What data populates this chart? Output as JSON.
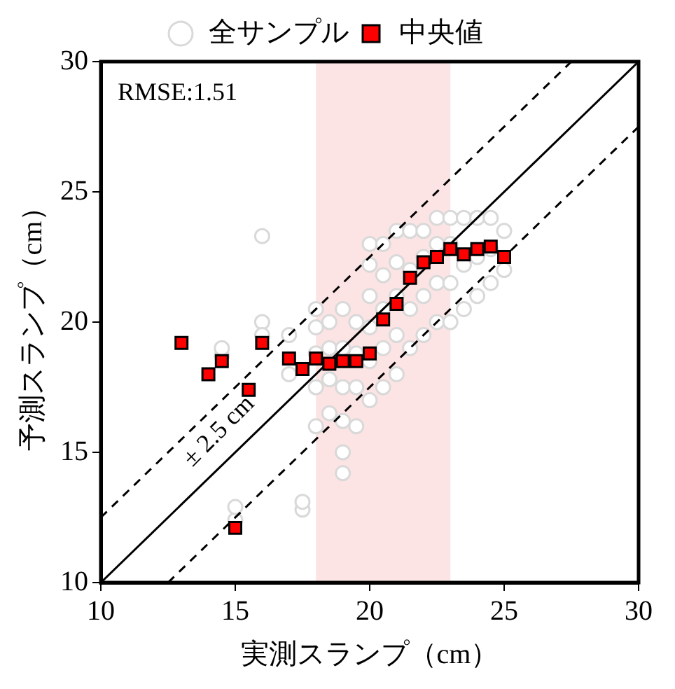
{
  "chart_data": {
    "type": "scatter",
    "xlabel": "実測スランプ（cm）",
    "ylabel": "予測スランプ（cm）",
    "xlim": [
      10,
      30
    ],
    "ylim": [
      10,
      30
    ],
    "xticks": [
      10,
      15,
      20,
      25,
      30
    ],
    "yticks": [
      10,
      15,
      20,
      25,
      30
    ],
    "grid": false,
    "legend": "top",
    "annotations": [
      "RMSE:1.51",
      "± 2.5 cm"
    ],
    "bands": [
      {
        "axis": "x",
        "from": 18,
        "to": 23,
        "color": "#fde4e4"
      }
    ],
    "series": [
      {
        "name": "全サンプル",
        "marker": "circle",
        "color": "#d9d9d9",
        "x": [
          14.5,
          14.5,
          15,
          15,
          16,
          16,
          16,
          17,
          17,
          17.5,
          17.5,
          18,
          18,
          18,
          18,
          18,
          18.5,
          18.5,
          18.5,
          18.5,
          19,
          19,
          19,
          19,
          19,
          19,
          19.5,
          19.5,
          19.5,
          19.5,
          20,
          20,
          20,
          20,
          20,
          20,
          20.5,
          20.5,
          20.5,
          20.5,
          20.5,
          21,
          21,
          21,
          21,
          21,
          21.5,
          21.5,
          21.5,
          21.5,
          22,
          22,
          22,
          22,
          22.5,
          22.5,
          22.5,
          22.5,
          23,
          23,
          23,
          23,
          23.5,
          23.5,
          23.5,
          24,
          24,
          24,
          24.5,
          24.5,
          24.5,
          25,
          25
        ],
        "values": [
          18.7,
          19.0,
          12.4,
          12.9,
          23.3,
          20.0,
          19.5,
          19.5,
          18.0,
          12.8,
          13.1,
          16.0,
          17.5,
          18.8,
          19.8,
          20.5,
          16.5,
          17.8,
          19.0,
          20.0,
          14.2,
          15.0,
          16.2,
          17.5,
          19.0,
          20.5,
          16.0,
          17.5,
          18.8,
          20.0,
          17.0,
          18.5,
          19.8,
          21.0,
          22.2,
          23.0,
          17.5,
          19.0,
          20.5,
          21.8,
          23.0,
          18.0,
          19.5,
          21.0,
          22.3,
          23.5,
          19.0,
          20.5,
          22.0,
          23.5,
          19.5,
          21.0,
          22.5,
          23.5,
          20.0,
          21.5,
          23.0,
          24.0,
          20.0,
          21.5,
          23.0,
          24.0,
          20.5,
          22.2,
          24.0,
          21.0,
          22.5,
          24.0,
          21.5,
          22.8,
          24.0,
          22.0,
          23.5
        ]
      },
      {
        "name": "中央値",
        "marker": "square",
        "color": "#ff0000",
        "x": [
          13,
          14,
          14.5,
          15,
          15.5,
          16,
          17,
          17.5,
          18,
          18.5,
          19,
          19.5,
          20,
          20.5,
          21,
          21.5,
          22,
          22.5,
          23,
          23.5,
          24,
          24.5,
          25
        ],
        "values": [
          19.2,
          18.0,
          18.5,
          12.1,
          17.4,
          19.2,
          18.6,
          18.2,
          18.6,
          18.4,
          18.5,
          18.5,
          18.8,
          20.1,
          20.7,
          21.7,
          22.3,
          22.5,
          22.8,
          22.6,
          22.8,
          22.9,
          22.5
        ]
      },
      {
        "type": "line",
        "marker": "none",
        "line_style": "solid",
        "color": "#000000",
        "x": [
          10,
          30
        ],
        "values": [
          10,
          30
        ]
      },
      {
        "type": "line",
        "marker": "none",
        "line_style": "dashed",
        "color": "#000000",
        "x": [
          10,
          27.5
        ],
        "values": [
          12.5,
          30
        ]
      },
      {
        "type": "line",
        "marker": "none",
        "line_style": "dashed",
        "color": "#000000",
        "x": [
          12.5,
          30
        ],
        "values": [
          10,
          27.5
        ]
      }
    ]
  }
}
